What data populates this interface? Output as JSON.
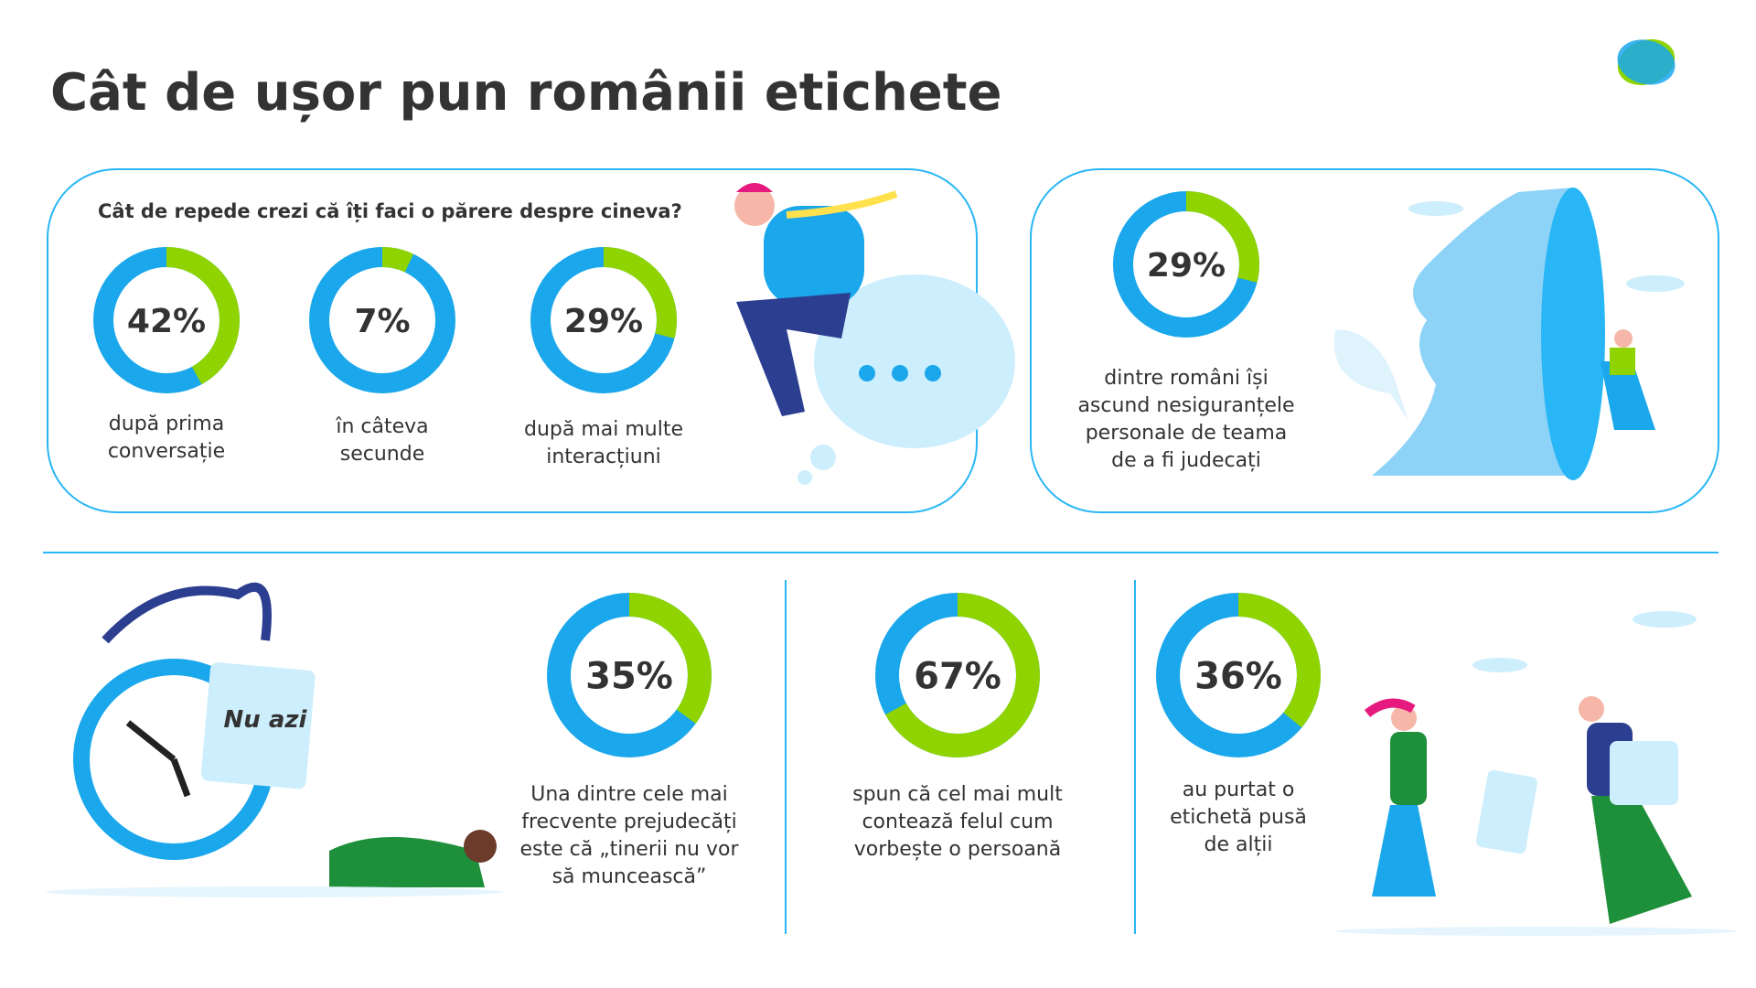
{
  "title": "Cât de ușor pun românii etichete",
  "question": "Cât de repede crezi că îți faci o părere despre cineva?",
  "stats": [
    {
      "value": 42,
      "value_label": "42%",
      "caption": [
        "după prima",
        "conversație"
      ]
    },
    {
      "value": 7,
      "value_label": "7%",
      "caption": [
        "în câteva",
        "secunde"
      ]
    },
    {
      "value": 29,
      "value_label": "29%",
      "caption": [
        "după mai multe",
        "interacțiuni"
      ]
    },
    {
      "value": 29,
      "value_label": "29%",
      "caption": [
        "dintre români își",
        "ascund nesiguranțele",
        "personale de teama",
        "de a fi judecați"
      ]
    },
    {
      "value": 35,
      "value_label": "35%",
      "caption": [
        "Una dintre cele mai",
        "frecvente prejudecăți",
        "este că „tinerii nu vor",
        "să muncească”"
      ]
    },
    {
      "value": 67,
      "value_label": "67%",
      "caption": [
        "spun că cel mai mult",
        "contează felul cum",
        "vorbește o persoană"
      ]
    },
    {
      "value": 36,
      "value_label": "36%",
      "caption": [
        "au purtat o",
        "etichetă pusă",
        "de alții"
      ]
    }
  ],
  "sign": "Nu azi"
}
